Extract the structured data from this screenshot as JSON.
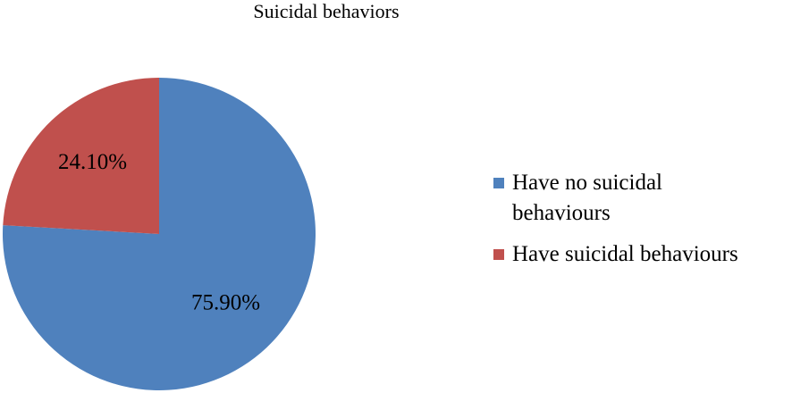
{
  "chart_data": {
    "type": "pie",
    "title": "Suicidal behaviors",
    "categories": [
      "Have no suicidal behaviours",
      "Have suicidal behaviours"
    ],
    "values": [
      75.9,
      24.1
    ],
    "value_labels": [
      "75.90%",
      "24.10%"
    ],
    "colors": [
      "#4f81bd",
      "#c0504d"
    ],
    "legend": "right"
  }
}
